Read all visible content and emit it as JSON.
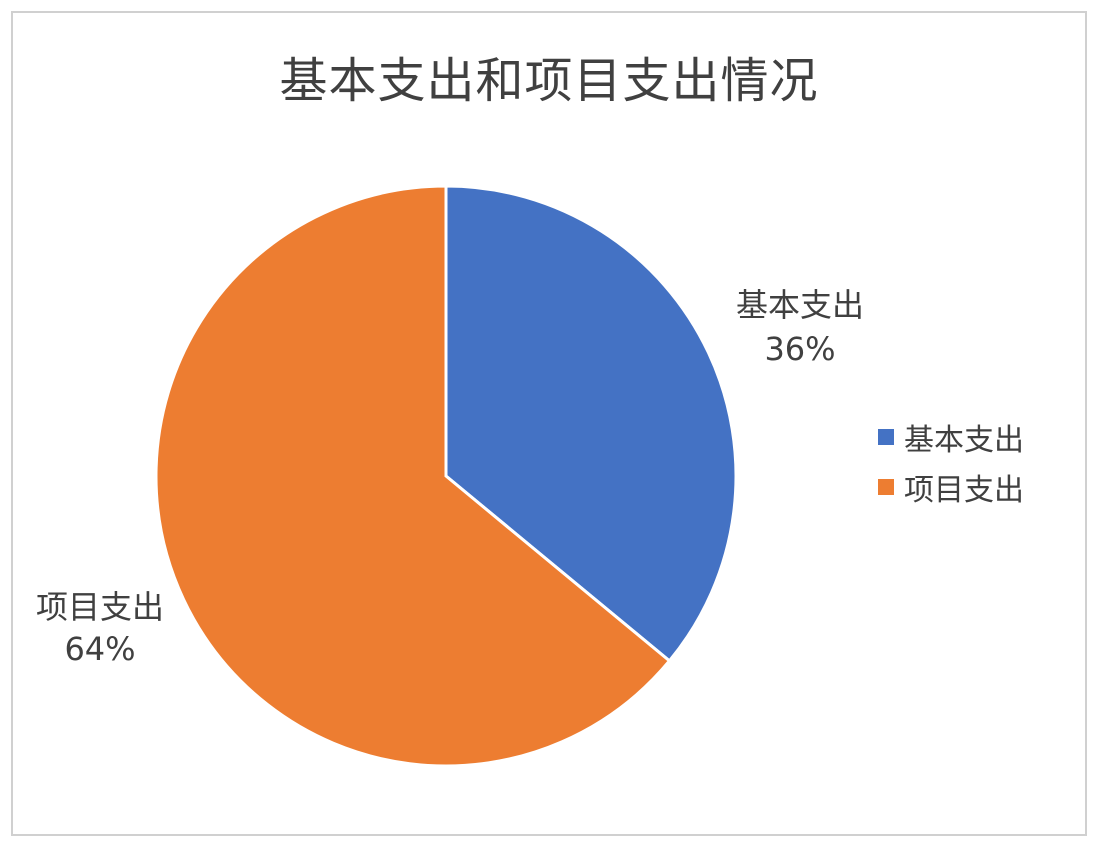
{
  "chart_data": {
    "type": "pie",
    "title": "基本支出和项目支出情况",
    "slices": [
      {
        "label": "基本支出",
        "value": 36,
        "data_label": "36%",
        "color": "#4472C4"
      },
      {
        "label": "项目支出",
        "value": 64,
        "data_label": "64%",
        "color": "#ED7D31"
      }
    ],
    "legend": {
      "position": "right",
      "entries": [
        "基本支出",
        "项目支出"
      ]
    }
  }
}
